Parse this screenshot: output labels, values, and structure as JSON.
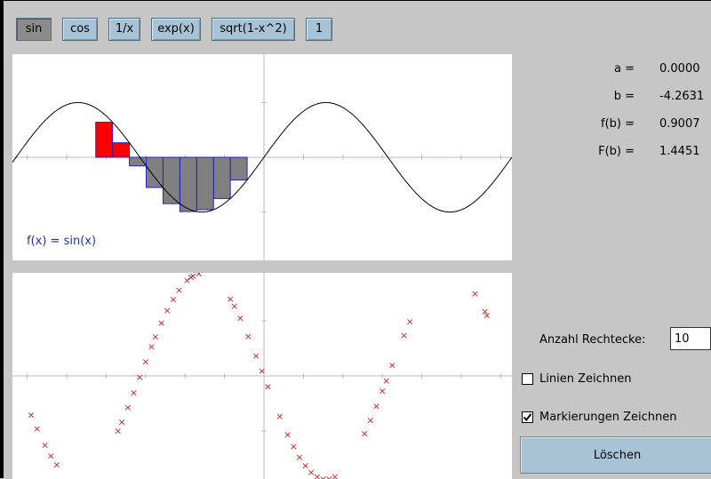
{
  "toolbar": {
    "buttons": [
      {
        "label": "sin",
        "active": true
      },
      {
        "label": "cos",
        "active": false
      },
      {
        "label": "1/x",
        "active": false
      },
      {
        "label": "exp(x)",
        "active": false
      },
      {
        "label": "sqrt(1-x^2)",
        "active": false
      },
      {
        "label": "1",
        "active": false
      }
    ]
  },
  "plot_top": {
    "function_label": "f(x) = sin(x)",
    "colors": {
      "curve": "#000000",
      "positive_rect": "#ff0000",
      "negative_rect": "#808080",
      "rect_outline": "#2222cc",
      "axis": "#bbbbbb",
      "label": "#2233aa"
    }
  },
  "plot_bottom": {
    "marker": "×",
    "colors": {
      "marker": "#cc2222",
      "axis": "#bbbbbb"
    }
  },
  "readouts": {
    "a_label": "a =",
    "a_value": "0.0000",
    "b_label": "b =",
    "b_value": "-4.2631",
    "fb_label": "f(b) =",
    "fb_value": "0.9007",
    "Fb_label": "F(b) =",
    "Fb_value": "1.4451"
  },
  "controls": {
    "rect_count_label": "Anzahl Rechtecke:",
    "rect_count_value": "10",
    "draw_lines_label": "Linien Zeichnen",
    "draw_lines_checked": false,
    "draw_markers_label": "Markierungen Zeichnen",
    "draw_markers_checked": true,
    "clear_label": "Löschen"
  }
}
